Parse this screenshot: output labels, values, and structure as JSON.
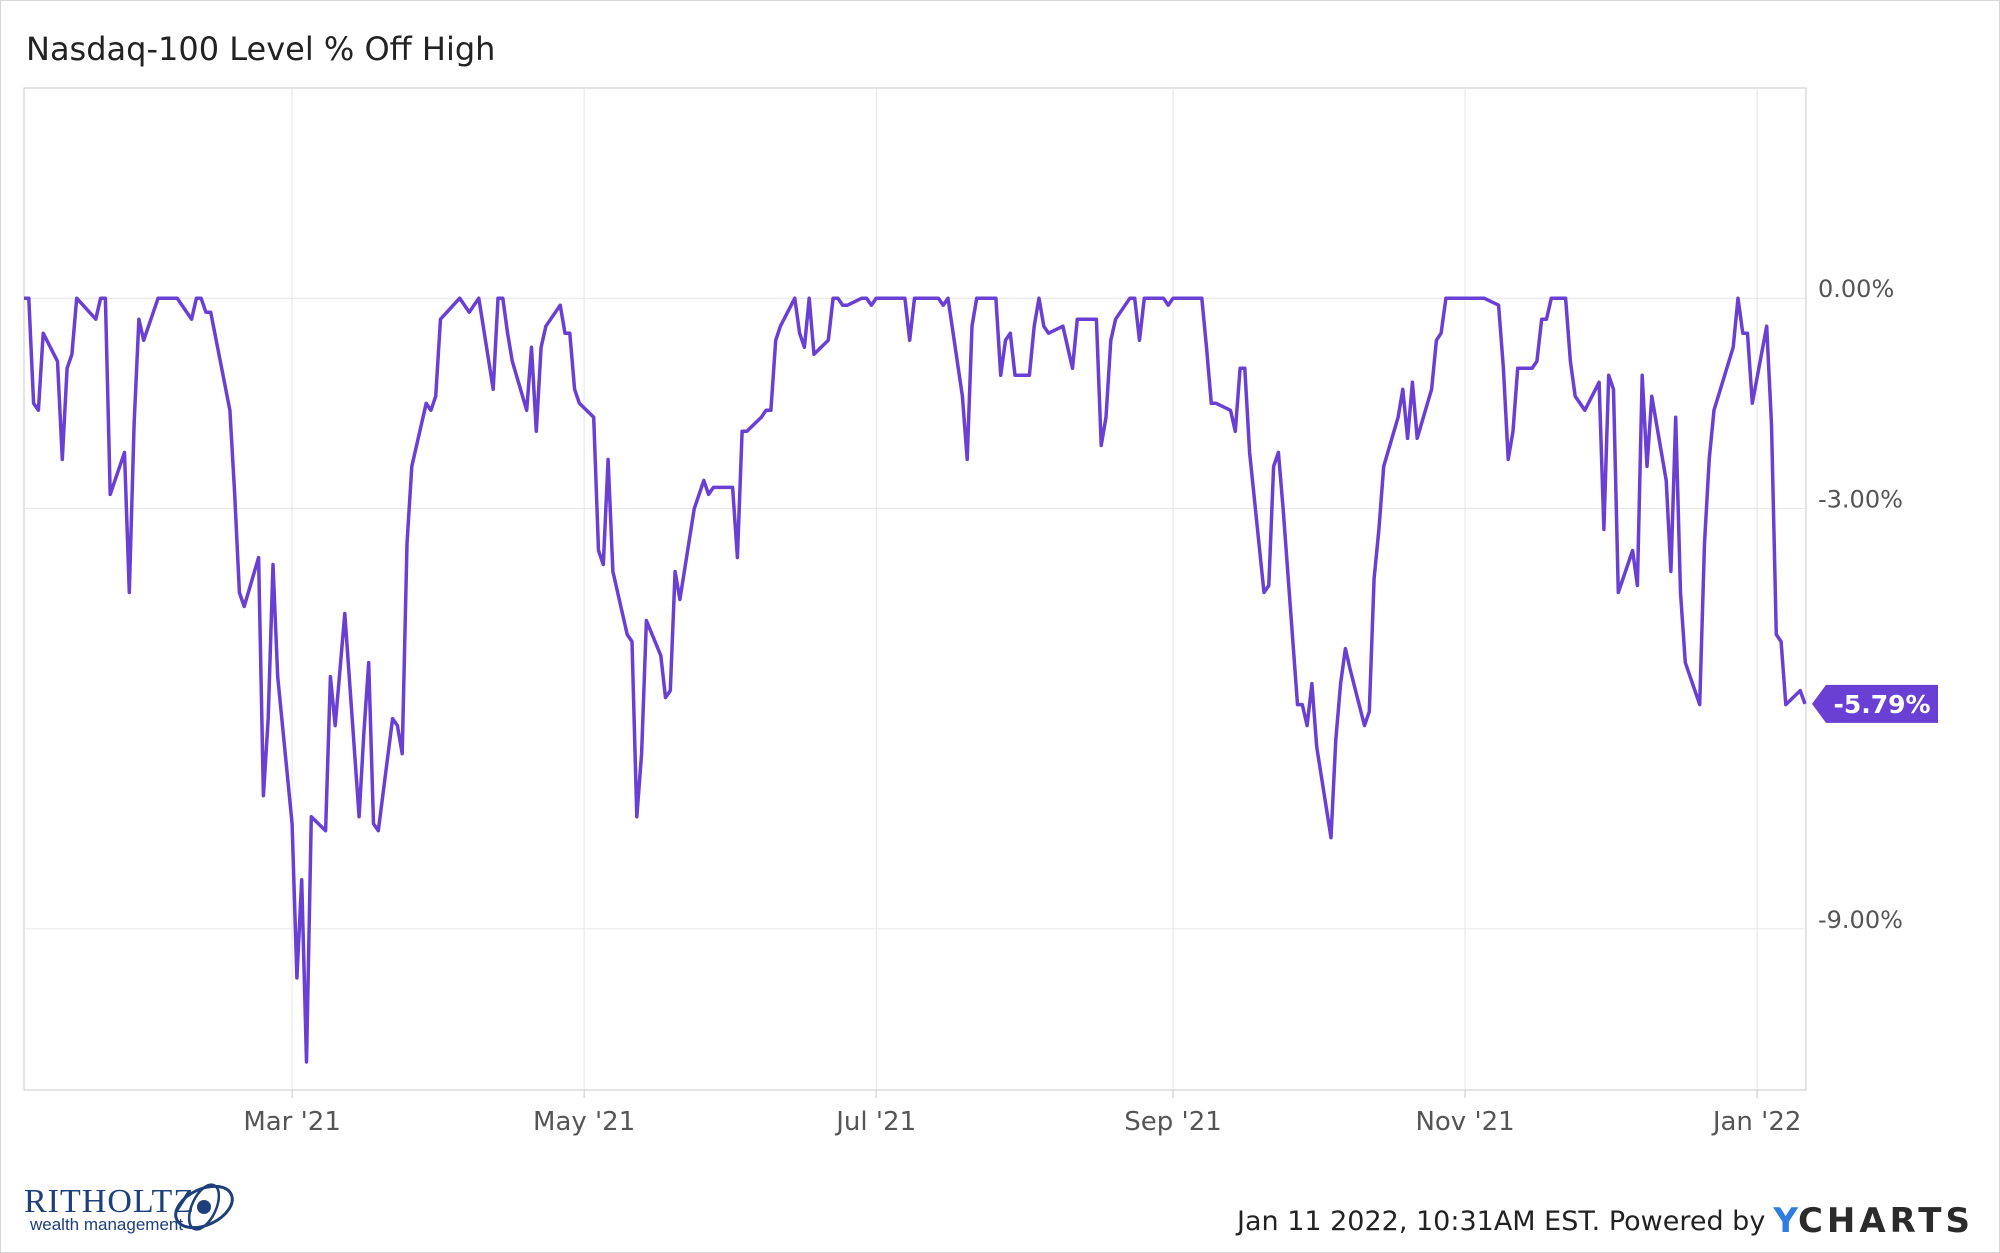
{
  "header": {
    "title": "Nasdaq-100 Level % Off High"
  },
  "footer": {
    "timestamp": "Jan 11 2022, 10:31AM EST. Powered by",
    "brand_y": "Y",
    "brand_rest": "CHARTS"
  },
  "logo": {
    "name": "RITHOLTZ",
    "sub": "wealth management"
  },
  "colors": {
    "line": "#6a3fd4",
    "grid": "#e6e6e6",
    "axis": "#c9c9c9",
    "tick_text": "#555555"
  },
  "chart_data": {
    "type": "line",
    "title": "Nasdaq-100 Level % Off High",
    "xlabel": "",
    "ylabel": "",
    "x_range": [
      "2021-01-04",
      "2022-01-11"
    ],
    "ylim": [
      -11.3,
      3.0
    ],
    "grid": true,
    "x_ticks": [
      {
        "label": "Mar '21",
        "date": "2021-03-01"
      },
      {
        "label": "May '21",
        "date": "2021-05-01"
      },
      {
        "label": "Jul '21",
        "date": "2021-07-01"
      },
      {
        "label": "Sep '21",
        "date": "2021-09-01"
      },
      {
        "label": "Nov '21",
        "date": "2021-11-01"
      },
      {
        "label": "Jan '22",
        "date": "2022-01-01"
      }
    ],
    "y_ticks": [
      {
        "label": "0.00%",
        "value": 0
      },
      {
        "label": "-3.00%",
        "value": -3
      },
      {
        "label": "-9.00%",
        "value": -9
      }
    ],
    "last_value_label": "-5.79%",
    "series": [
      {
        "values": [
          [
            "2021-01-04",
            0
          ],
          [
            "2021-01-05",
            0
          ],
          [
            "2021-01-06",
            -1.5
          ],
          [
            "2021-01-07",
            -1.6
          ],
          [
            "2021-01-08",
            -0.5
          ],
          [
            "2021-01-11",
            -0.9
          ],
          [
            "2021-01-12",
            -2.3
          ],
          [
            "2021-01-13",
            -1.0
          ],
          [
            "2021-01-14",
            -0.8
          ],
          [
            "2021-01-15",
            0
          ],
          [
            "2021-01-19",
            -0.3
          ],
          [
            "2021-01-20",
            0
          ],
          [
            "2021-01-21",
            0
          ],
          [
            "2021-01-22",
            -2.8
          ],
          [
            "2021-01-25",
            -2.2
          ],
          [
            "2021-01-26",
            -4.2
          ],
          [
            "2021-01-27",
            -1.8
          ],
          [
            "2021-01-28",
            -0.3
          ],
          [
            "2021-01-29",
            -0.6
          ],
          [
            "2021-02-01",
            0
          ],
          [
            "2021-02-02",
            0
          ],
          [
            "2021-02-03",
            0
          ],
          [
            "2021-02-04",
            0
          ],
          [
            "2021-02-05",
            0
          ],
          [
            "2021-02-08",
            -0.3
          ],
          [
            "2021-02-09",
            0
          ],
          [
            "2021-02-10",
            0
          ],
          [
            "2021-02-11",
            -0.2
          ],
          [
            "2021-02-12",
            -0.2
          ],
          [
            "2021-02-16",
            -1.6
          ],
          [
            "2021-02-17",
            -2.8
          ],
          [
            "2021-02-18",
            -4.2
          ],
          [
            "2021-02-19",
            -4.4
          ],
          [
            "2021-02-22",
            -3.7
          ],
          [
            "2021-02-23",
            -7.1
          ],
          [
            "2021-02-24",
            -6.0
          ],
          [
            "2021-02-25",
            -3.8
          ],
          [
            "2021-02-26",
            -5.4
          ],
          [
            "2021-03-01",
            -7.5
          ],
          [
            "2021-03-02",
            -9.7
          ],
          [
            "2021-03-03",
            -8.3
          ],
          [
            "2021-03-04",
            -10.9
          ],
          [
            "2021-03-05",
            -7.4
          ],
          [
            "2021-03-08",
            -7.6
          ],
          [
            "2021-03-09",
            -5.4
          ],
          [
            "2021-03-10",
            -6.1
          ],
          [
            "2021-03-11",
            -5.3
          ],
          [
            "2021-03-12",
            -4.5
          ],
          [
            "2021-03-15",
            -7.4
          ],
          [
            "2021-03-16",
            -6.2
          ],
          [
            "2021-03-17",
            -5.2
          ],
          [
            "2021-03-18",
            -7.5
          ],
          [
            "2021-03-19",
            -7.6
          ],
          [
            "2021-03-22",
            -6.0
          ],
          [
            "2021-03-23",
            -6.1
          ],
          [
            "2021-03-24",
            -6.5
          ],
          [
            "2021-03-25",
            -3.5
          ],
          [
            "2021-03-26",
            -2.4
          ],
          [
            "2021-03-29",
            -1.5
          ],
          [
            "2021-03-30",
            -1.6
          ],
          [
            "2021-03-31",
            -1.4
          ],
          [
            "2021-04-01",
            -0.3
          ],
          [
            "2021-04-05",
            0
          ],
          [
            "2021-04-06",
            -0.1
          ],
          [
            "2021-04-07",
            -0.2
          ],
          [
            "2021-04-08",
            -0.1
          ],
          [
            "2021-04-09",
            0
          ],
          [
            "2021-04-12",
            -1.3
          ],
          [
            "2021-04-13",
            0
          ],
          [
            "2021-04-14",
            0
          ],
          [
            "2021-04-15",
            -0.5
          ],
          [
            "2021-04-16",
            -0.9
          ],
          [
            "2021-04-19",
            -1.6
          ],
          [
            "2021-04-20",
            -0.7
          ],
          [
            "2021-04-21",
            -1.9
          ],
          [
            "2021-04-22",
            -0.7
          ],
          [
            "2021-04-23",
            -0.4
          ],
          [
            "2021-04-26",
            -0.1
          ],
          [
            "2021-04-27",
            -0.5
          ],
          [
            "2021-04-28",
            -0.5
          ],
          [
            "2021-04-29",
            -1.3
          ],
          [
            "2021-04-30",
            -1.5
          ],
          [
            "2021-05-03",
            -1.7
          ],
          [
            "2021-05-04",
            -3.6
          ],
          [
            "2021-05-05",
            -3.8
          ],
          [
            "2021-05-06",
            -2.3
          ],
          [
            "2021-05-07",
            -3.9
          ],
          [
            "2021-05-10",
            -4.8
          ],
          [
            "2021-05-11",
            -4.9
          ],
          [
            "2021-05-12",
            -7.4
          ],
          [
            "2021-05-13",
            -6.5
          ],
          [
            "2021-05-14",
            -4.6
          ],
          [
            "2021-05-17",
            -5.1
          ],
          [
            "2021-05-18",
            -5.7
          ],
          [
            "2021-05-19",
            -5.6
          ],
          [
            "2021-05-20",
            -3.9
          ],
          [
            "2021-05-21",
            -4.3
          ],
          [
            "2021-05-24",
            -3.0
          ],
          [
            "2021-05-25",
            -2.8
          ],
          [
            "2021-05-26",
            -2.6
          ],
          [
            "2021-05-27",
            -2.8
          ],
          [
            "2021-05-28",
            -2.7
          ],
          [
            "2021-06-01",
            -2.7
          ],
          [
            "2021-06-02",
            -3.7
          ],
          [
            "2021-06-03",
            -1.9
          ],
          [
            "2021-06-04",
            -1.9
          ],
          [
            "2021-06-07",
            -1.7
          ],
          [
            "2021-06-08",
            -1.6
          ],
          [
            "2021-06-09",
            -1.6
          ],
          [
            "2021-06-10",
            -0.6
          ],
          [
            "2021-06-11",
            -0.4
          ],
          [
            "2021-06-14",
            0
          ],
          [
            "2021-06-15",
            -0.5
          ],
          [
            "2021-06-16",
            -0.7
          ],
          [
            "2021-06-17",
            0
          ],
          [
            "2021-06-18",
            -0.8
          ],
          [
            "2021-06-21",
            -0.6
          ],
          [
            "2021-06-22",
            0
          ],
          [
            "2021-06-23",
            0
          ],
          [
            "2021-06-24",
            -0.1
          ],
          [
            "2021-06-25",
            -0.1
          ],
          [
            "2021-06-28",
            0
          ],
          [
            "2021-06-29",
            0
          ],
          [
            "2021-06-30",
            -0.1
          ],
          [
            "2021-07-01",
            0
          ],
          [
            "2021-07-02",
            0
          ],
          [
            "2021-07-06",
            0
          ],
          [
            "2021-07-07",
            0
          ],
          [
            "2021-07-08",
            -0.6
          ],
          [
            "2021-07-09",
            0
          ],
          [
            "2021-07-12",
            0
          ],
          [
            "2021-07-13",
            0
          ],
          [
            "2021-07-14",
            0
          ],
          [
            "2021-07-15",
            -0.1
          ],
          [
            "2021-07-16",
            0
          ],
          [
            "2021-07-19",
            -1.4
          ],
          [
            "2021-07-20",
            -2.3
          ],
          [
            "2021-07-21",
            -0.4
          ],
          [
            "2021-07-22",
            0
          ],
          [
            "2021-07-23",
            0
          ],
          [
            "2021-07-26",
            0
          ],
          [
            "2021-07-27",
            -1.1
          ],
          [
            "2021-07-28",
            -0.6
          ],
          [
            "2021-07-29",
            -0.5
          ],
          [
            "2021-07-30",
            -1.1
          ],
          [
            "2021-08-02",
            -1.1
          ],
          [
            "2021-08-03",
            -0.4
          ],
          [
            "2021-08-04",
            0
          ],
          [
            "2021-08-05",
            -0.4
          ],
          [
            "2021-08-06",
            -0.5
          ],
          [
            "2021-08-09",
            -0.4
          ],
          [
            "2021-08-10",
            -0.7
          ],
          [
            "2021-08-11",
            -1.0
          ],
          [
            "2021-08-12",
            -0.3
          ],
          [
            "2021-08-13",
            -0.3
          ],
          [
            "2021-08-16",
            -0.3
          ],
          [
            "2021-08-17",
            -2.1
          ],
          [
            "2021-08-18",
            -1.7
          ],
          [
            "2021-08-19",
            -0.6
          ],
          [
            "2021-08-20",
            -0.3
          ],
          [
            "2021-08-23",
            0
          ],
          [
            "2021-08-24",
            0
          ],
          [
            "2021-08-25",
            -0.6
          ],
          [
            "2021-08-26",
            0
          ],
          [
            "2021-08-27",
            0
          ],
          [
            "2021-08-30",
            0
          ],
          [
            "2021-08-31",
            -0.1
          ],
          [
            "2021-09-01",
            0
          ],
          [
            "2021-09-02",
            0
          ],
          [
            "2021-09-03",
            0
          ],
          [
            "2021-09-07",
            0
          ],
          [
            "2021-09-08",
            -0.7
          ],
          [
            "2021-09-09",
            -1.5
          ],
          [
            "2021-09-10",
            -1.5
          ],
          [
            "2021-09-13",
            -1.6
          ],
          [
            "2021-09-14",
            -1.9
          ],
          [
            "2021-09-15",
            -1.0
          ],
          [
            "2021-09-16",
            -1.0
          ],
          [
            "2021-09-17",
            -2.2
          ],
          [
            "2021-09-20",
            -4.2
          ],
          [
            "2021-09-21",
            -4.1
          ],
          [
            "2021-09-22",
            -2.4
          ],
          [
            "2021-09-23",
            -2.2
          ],
          [
            "2021-09-24",
            -3.0
          ],
          [
            "2021-09-27",
            -5.8
          ],
          [
            "2021-09-28",
            -5.8
          ],
          [
            "2021-09-29",
            -6.1
          ],
          [
            "2021-09-30",
            -5.5
          ],
          [
            "2021-10-01",
            -6.4
          ],
          [
            "2021-10-04",
            -7.7
          ],
          [
            "2021-10-05",
            -6.3
          ],
          [
            "2021-10-06",
            -5.5
          ],
          [
            "2021-10-07",
            -5.0
          ],
          [
            "2021-10-08",
            -5.3
          ],
          [
            "2021-10-11",
            -6.1
          ],
          [
            "2021-10-12",
            -5.9
          ],
          [
            "2021-10-13",
            -4.0
          ],
          [
            "2021-10-14",
            -3.3
          ],
          [
            "2021-10-15",
            -2.4
          ],
          [
            "2021-10-18",
            -1.7
          ],
          [
            "2021-10-19",
            -1.3
          ],
          [
            "2021-10-20",
            -2.0
          ],
          [
            "2021-10-21",
            -1.2
          ],
          [
            "2021-10-22",
            -2.0
          ],
          [
            "2021-10-25",
            -1.3
          ],
          [
            "2021-10-26",
            -0.6
          ],
          [
            "2021-10-27",
            -0.5
          ],
          [
            "2021-10-28",
            0
          ],
          [
            "2021-10-29",
            0
          ],
          [
            "2021-11-01",
            0
          ],
          [
            "2021-11-02",
            0
          ],
          [
            "2021-11-03",
            0
          ],
          [
            "2021-11-04",
            0
          ],
          [
            "2021-11-05",
            0
          ],
          [
            "2021-11-08",
            -0.1
          ],
          [
            "2021-11-09",
            -1.0
          ],
          [
            "2021-11-10",
            -2.3
          ],
          [
            "2021-11-11",
            -1.9
          ],
          [
            "2021-11-12",
            -1.0
          ],
          [
            "2021-11-15",
            -1.0
          ],
          [
            "2021-11-16",
            -0.9
          ],
          [
            "2021-11-17",
            -0.3
          ],
          [
            "2021-11-18",
            -0.3
          ],
          [
            "2021-11-19",
            0
          ],
          [
            "2021-11-22",
            0
          ],
          [
            "2021-11-23",
            -0.9
          ],
          [
            "2021-11-24",
            -1.4
          ],
          [
            "2021-11-26",
            -1.6
          ],
          [
            "2021-11-29",
            -1.2
          ],
          [
            "2021-11-30",
            -3.3
          ],
          [
            "2021-12-01",
            -1.1
          ],
          [
            "2021-12-02",
            -1.3
          ],
          [
            "2021-12-03",
            -4.2
          ],
          [
            "2021-12-06",
            -3.6
          ],
          [
            "2021-12-07",
            -4.1
          ],
          [
            "2021-12-08",
            -1.1
          ],
          [
            "2021-12-09",
            -2.4
          ],
          [
            "2021-12-10",
            -1.4
          ],
          [
            "2021-12-13",
            -2.6
          ],
          [
            "2021-12-14",
            -3.9
          ],
          [
            "2021-12-15",
            -1.7
          ],
          [
            "2021-12-16",
            -4.2
          ],
          [
            "2021-12-17",
            -5.2
          ],
          [
            "2021-12-20",
            -5.8
          ],
          [
            "2021-12-21",
            -3.5
          ],
          [
            "2021-12-22",
            -2.3
          ],
          [
            "2021-12-23",
            -1.6
          ],
          [
            "2021-12-27",
            -0.7
          ],
          [
            "2021-12-28",
            0
          ],
          [
            "2021-12-29",
            -0.5
          ],
          [
            "2021-12-30",
            -0.5
          ],
          [
            "2021-12-31",
            -1.5
          ],
          [
            "2022-01-03",
            -0.4
          ],
          [
            "2022-01-04",
            -1.8
          ],
          [
            "2022-01-05",
            -4.8
          ],
          [
            "2022-01-06",
            -4.9
          ],
          [
            "2022-01-07",
            -5.8
          ],
          [
            "2022-01-10",
            -5.6
          ],
          [
            "2022-01-11",
            -5.79
          ]
        ]
      }
    ]
  }
}
